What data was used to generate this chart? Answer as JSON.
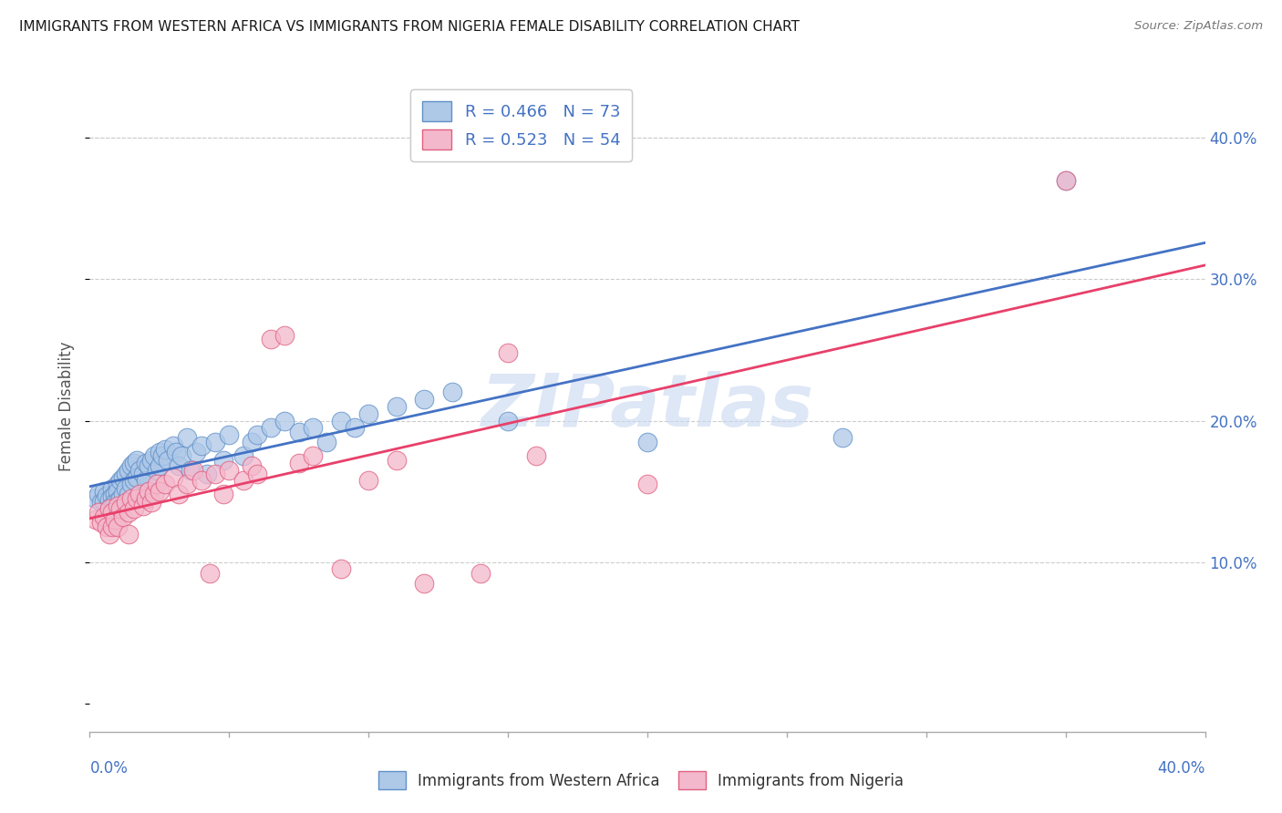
{
  "title": "IMMIGRANTS FROM WESTERN AFRICA VS IMMIGRANTS FROM NIGERIA FEMALE DISABILITY CORRELATION CHART",
  "source": "Source: ZipAtlas.com",
  "ylabel": "Female Disability",
  "ytick_vals": [
    0.1,
    0.2,
    0.3,
    0.4
  ],
  "xmin": 0.0,
  "xmax": 0.4,
  "ymin": -0.02,
  "ymax": 0.44,
  "legend_r1_r": "R = 0.466",
  "legend_r1_n": "N = 73",
  "legend_r2_r": "R = 0.523",
  "legend_r2_n": "N = 54",
  "blue_color": "#AEC8E8",
  "pink_color": "#F4B8CC",
  "blue_edge_color": "#6090C8",
  "pink_edge_color": "#E06080",
  "blue_line_color": "#4472C4",
  "pink_line_color": "#E8406A",
  "axis_label_color": "#4472C4",
  "watermark": "ZIPatlas",
  "watermark_color": "#C8D8F0",
  "blue_scatter_x": [
    0.002,
    0.003,
    0.004,
    0.005,
    0.005,
    0.006,
    0.007,
    0.007,
    0.008,
    0.008,
    0.008,
    0.009,
    0.009,
    0.01,
    0.01,
    0.01,
    0.011,
    0.011,
    0.012,
    0.012,
    0.013,
    0.013,
    0.014,
    0.014,
    0.015,
    0.015,
    0.016,
    0.016,
    0.017,
    0.017,
    0.018,
    0.019,
    0.02,
    0.02,
    0.021,
    0.022,
    0.023,
    0.024,
    0.025,
    0.025,
    0.026,
    0.027,
    0.028,
    0.03,
    0.031,
    0.032,
    0.033,
    0.035,
    0.036,
    0.038,
    0.04,
    0.042,
    0.045,
    0.048,
    0.05,
    0.055,
    0.058,
    0.06,
    0.065,
    0.07,
    0.075,
    0.08,
    0.085,
    0.09,
    0.095,
    0.1,
    0.11,
    0.12,
    0.13,
    0.15,
    0.2,
    0.27,
    0.35
  ],
  "blue_scatter_y": [
    0.145,
    0.148,
    0.142,
    0.15,
    0.143,
    0.147,
    0.144,
    0.138,
    0.152,
    0.146,
    0.14,
    0.148,
    0.142,
    0.155,
    0.15,
    0.143,
    0.158,
    0.145,
    0.16,
    0.148,
    0.162,
    0.152,
    0.165,
    0.148,
    0.168,
    0.155,
    0.17,
    0.158,
    0.172,
    0.16,
    0.165,
    0.162,
    0.17,
    0.158,
    0.168,
    0.172,
    0.175,
    0.165,
    0.178,
    0.168,
    0.175,
    0.18,
    0.172,
    0.182,
    0.178,
    0.168,
    0.175,
    0.188,
    0.165,
    0.178,
    0.182,
    0.162,
    0.185,
    0.172,
    0.19,
    0.175,
    0.185,
    0.19,
    0.195,
    0.2,
    0.192,
    0.195,
    0.185,
    0.2,
    0.195,
    0.205,
    0.21,
    0.215,
    0.22,
    0.2,
    0.185,
    0.188,
    0.37
  ],
  "pink_scatter_x": [
    0.002,
    0.003,
    0.004,
    0.005,
    0.006,
    0.007,
    0.007,
    0.008,
    0.008,
    0.009,
    0.01,
    0.01,
    0.011,
    0.012,
    0.013,
    0.014,
    0.014,
    0.015,
    0.016,
    0.017,
    0.018,
    0.019,
    0.02,
    0.021,
    0.022,
    0.023,
    0.024,
    0.025,
    0.027,
    0.03,
    0.032,
    0.035,
    0.037,
    0.04,
    0.043,
    0.045,
    0.048,
    0.05,
    0.055,
    0.058,
    0.06,
    0.065,
    0.07,
    0.075,
    0.08,
    0.09,
    0.1,
    0.11,
    0.12,
    0.14,
    0.15,
    0.16,
    0.2,
    0.35
  ],
  "pink_scatter_y": [
    0.13,
    0.135,
    0.128,
    0.132,
    0.125,
    0.138,
    0.12,
    0.135,
    0.125,
    0.13,
    0.14,
    0.125,
    0.138,
    0.132,
    0.142,
    0.135,
    0.12,
    0.145,
    0.138,
    0.145,
    0.148,
    0.14,
    0.145,
    0.15,
    0.142,
    0.148,
    0.155,
    0.15,
    0.155,
    0.16,
    0.148,
    0.155,
    0.165,
    0.158,
    0.092,
    0.162,
    0.148,
    0.165,
    0.158,
    0.168,
    0.162,
    0.258,
    0.26,
    0.17,
    0.175,
    0.095,
    0.158,
    0.172,
    0.085,
    0.092,
    0.248,
    0.175,
    0.155,
    0.37
  ]
}
